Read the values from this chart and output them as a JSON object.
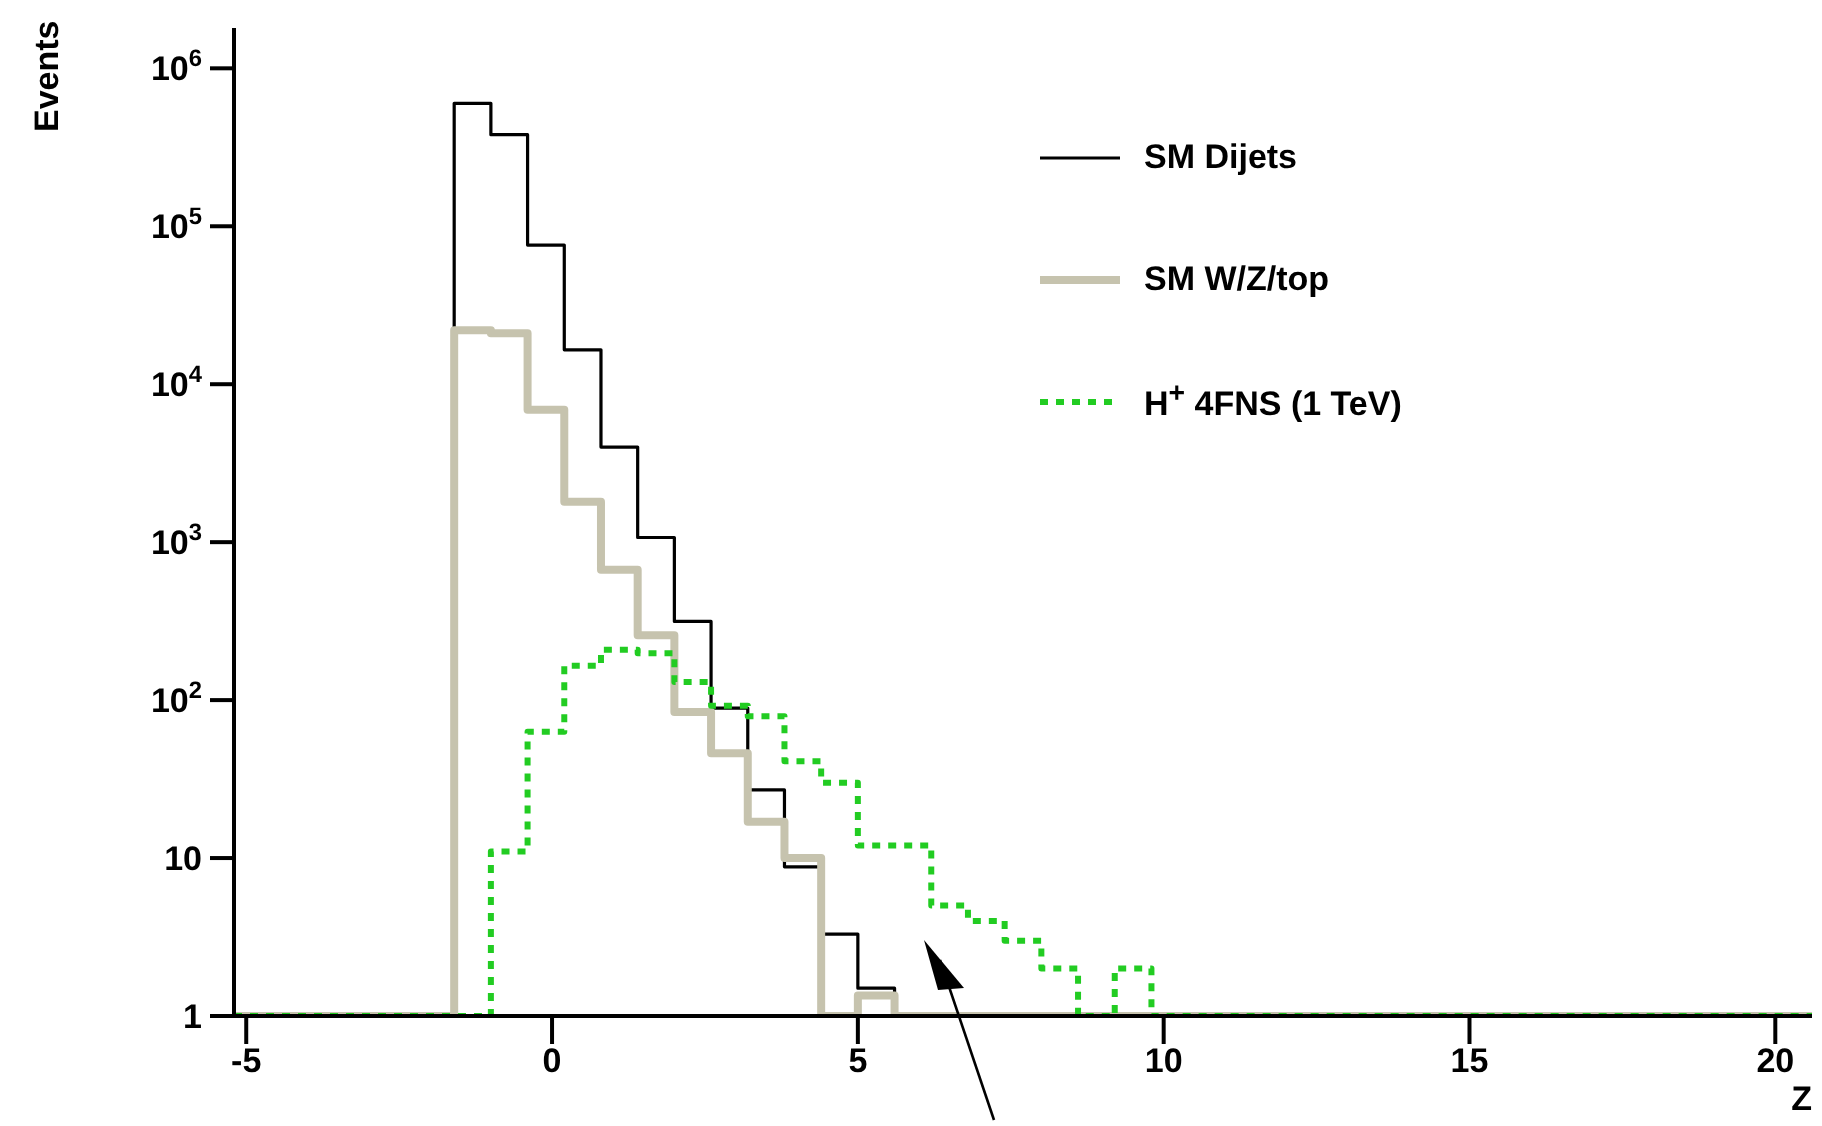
{
  "chart_data": {
    "type": "histogram",
    "xlabel": "Z",
    "ylabel": "Events",
    "bins": [
      -5.2,
      -4.6,
      -4.0,
      -3.4,
      -2.8,
      -2.2,
      -1.6,
      -1.0,
      -0.4,
      0.2,
      0.8,
      1.4,
      2.0,
      2.6,
      3.2,
      3.8,
      4.4,
      5.0,
      5.6,
      6.2,
      6.8,
      7.4,
      8.0,
      8.6,
      9.2,
      9.8,
      10.4,
      11.0,
      11.6,
      12.2,
      12.8,
      13.4,
      14.0,
      14.6,
      15.2,
      15.8,
      16.4,
      17.0,
      17.6,
      18.2,
      18.8,
      19.4,
      20.0,
      20.6
    ],
    "series": [
      {
        "name": "SM Dijets",
        "color": "#000000",
        "line_style": "solid",
        "values": [
          1,
          1,
          1,
          1,
          1,
          1,
          600000,
          380000,
          76000,
          16500,
          4000,
          1070,
          315,
          89,
          27,
          8.8,
          3.3,
          1.5,
          1,
          1,
          1,
          1,
          1,
          1,
          1,
          1,
          1,
          1,
          1,
          1,
          1,
          1,
          1,
          1,
          1,
          1,
          1,
          1,
          1,
          1,
          1,
          1,
          1
        ]
      },
      {
        "name": "SM W/Z/top",
        "color": "#c6c3ae",
        "line_style": "solid",
        "values": [
          1,
          1,
          1,
          1,
          1,
          1,
          22000,
          21000,
          6900,
          1800,
          670,
          257,
          84,
          46,
          17,
          10,
          1,
          1.35,
          1,
          1,
          1,
          1,
          1,
          1,
          1,
          1,
          1,
          1,
          1,
          1,
          1,
          1,
          1,
          1,
          1,
          1,
          1,
          1,
          1,
          1,
          1,
          1,
          1
        ]
      },
      {
        "name": "H$^{+}$ 4FNS (1 TeV)",
        "color": "#22cc22",
        "line_style": "dotted",
        "values": [
          1,
          1,
          1,
          1,
          1,
          1,
          1,
          11,
          63,
          165,
          208,
          198,
          130,
          92,
          79,
          41,
          30,
          12,
          12,
          5,
          4,
          3,
          2,
          1,
          2,
          1,
          1,
          1,
          1,
          1,
          1,
          1,
          1,
          1,
          1,
          1,
          1,
          1,
          1,
          1,
          1,
          1,
          1
        ]
      }
    ],
    "xlim": [
      -5.2,
      20.6
    ],
    "xticks": [
      -5,
      0,
      5,
      10,
      15,
      20
    ],
    "ylim": [
      1,
      1800000
    ],
    "log": true,
    "yticks": [
      1,
      10,
      {
        "value": 100,
        "label": "10$^{2}$"
      },
      {
        "value": 1000,
        "label": "10$^{3}$"
      },
      {
        "value": 10000,
        "label": "10$^{4}$"
      },
      {
        "value": 100000,
        "label": "10$^{5}$"
      },
      {
        "value": 1000000,
        "label": "10$^{6}$"
      }
    ],
    "legend": "top right"
  }
}
